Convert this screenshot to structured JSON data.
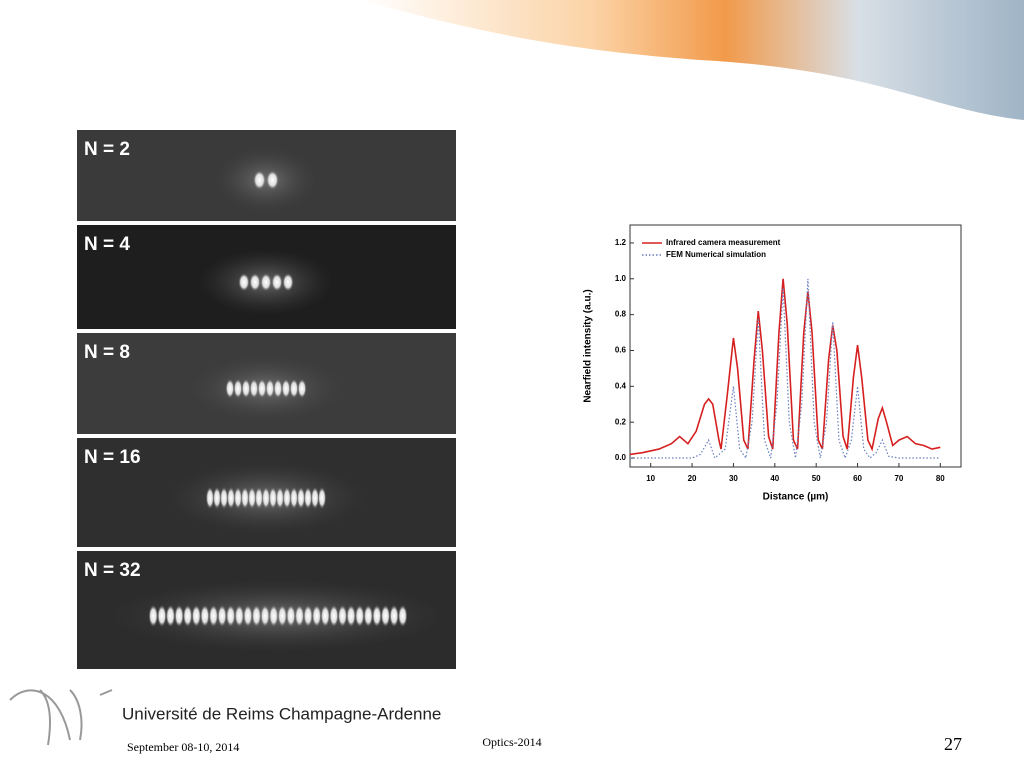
{
  "slide": {
    "panel_labels": [
      "N = 2",
      "N = 4",
      "N = 8",
      "N = 16",
      "N = 32"
    ],
    "university": "Université de Reims Champagne-Ardenne",
    "date": "September 08-10, 2014",
    "conference": "Optics-2014",
    "page_number": "27"
  },
  "chart_data": {
    "type": "line",
    "xlabel": "Distance (µm)",
    "ylabel": "Nearfield intensity (a.u.)",
    "xlim": [
      5,
      85
    ],
    "ylim": [
      -0.05,
      1.3
    ],
    "xticks": [
      10,
      20,
      30,
      40,
      50,
      60,
      70,
      80
    ],
    "yticks": [
      {
        "value": 0,
        "label": "0.0"
      },
      0.2,
      0.4,
      0.6,
      0.8,
      {
        "value": 1,
        "label": "1.0"
      },
      1.2
    ],
    "legend": "upper left",
    "series": [
      {
        "name": "Infrared camera measurement",
        "color": "#d62020",
        "style": "solid",
        "x": [
          5,
          8,
          12,
          15,
          17,
          19,
          21,
          23,
          24,
          25,
          26.5,
          27,
          28.5,
          30,
          31,
          32.5,
          33.5,
          35,
          36,
          37,
          38.5,
          39.5,
          41,
          42,
          43,
          44.5,
          45.5,
          47,
          48,
          49,
          50.5,
          51.5,
          53,
          54,
          55,
          56.5,
          57.5,
          59,
          60,
          61,
          62.5,
          63.5,
          65,
          66,
          67,
          68.5,
          70,
          72,
          74,
          76,
          78,
          80
        ],
        "values": [
          0.02,
          0.03,
          0.05,
          0.08,
          0.12,
          0.08,
          0.15,
          0.3,
          0.33,
          0.3,
          0.1,
          0.05,
          0.35,
          0.67,
          0.5,
          0.1,
          0.05,
          0.55,
          0.82,
          0.6,
          0.12,
          0.05,
          0.7,
          1.0,
          0.75,
          0.1,
          0.05,
          0.7,
          0.93,
          0.7,
          0.1,
          0.05,
          0.55,
          0.74,
          0.6,
          0.12,
          0.05,
          0.45,
          0.63,
          0.45,
          0.1,
          0.05,
          0.22,
          0.28,
          0.2,
          0.07,
          0.1,
          0.12,
          0.08,
          0.07,
          0.05,
          0.06
        ]
      },
      {
        "name": "FEM Numerical simulation",
        "color": "#6a7fc0",
        "style": "dotted",
        "x": [
          5,
          20,
          22,
          24,
          25.5,
          28,
          30,
          31.5,
          33,
          34.5,
          36,
          37.5,
          39,
          40.5,
          42,
          43.5,
          45,
          46.5,
          48,
          49.5,
          51,
          52.5,
          54,
          55.5,
          57,
          58.5,
          60,
          61.5,
          63,
          64.5,
          66,
          67.5,
          70,
          80
        ],
        "values": [
          0,
          0,
          0.02,
          0.1,
          0,
          0.05,
          0.4,
          0.05,
          0,
          0.2,
          0.78,
          0.1,
          0,
          0.3,
          0.95,
          0.2,
          0,
          0.3,
          1.0,
          0.2,
          0,
          0.2,
          0.76,
          0.1,
          0,
          0.1,
          0.4,
          0.05,
          0,
          0.03,
          0.1,
          0.01,
          0,
          0
        ]
      }
    ]
  }
}
